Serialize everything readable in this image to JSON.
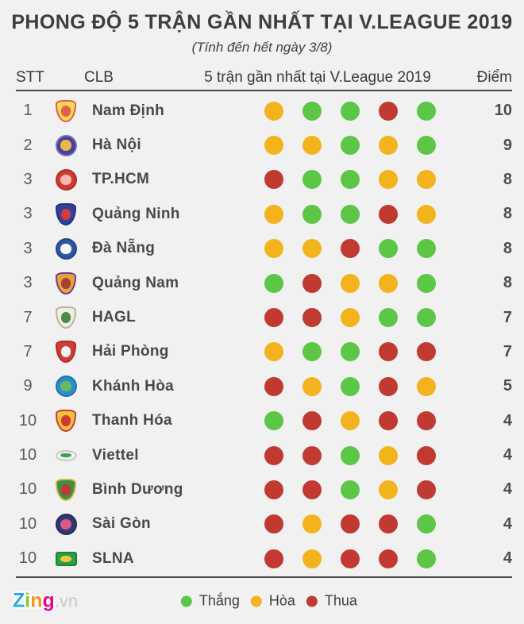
{
  "title": "PHONG ĐỘ 5 TRẬN GẦN NHẤT TẠI V.LEAGUE 2019",
  "subtitle": "(Tính đến hết ngày 3/8)",
  "columns": {
    "stt": "STT",
    "clb": "CLB",
    "form": "5 trận gần nhất tại V.League 2019",
    "points": "Điểm"
  },
  "result_colors": {
    "W": "#5CC646",
    "D": "#F3B31C",
    "L": "#C03A31"
  },
  "result_names": {
    "W": "win",
    "D": "draw",
    "L": "loss"
  },
  "legend": [
    {
      "result": "W",
      "label": "Thắng"
    },
    {
      "result": "D",
      "label": "Hòa"
    },
    {
      "result": "L",
      "label": "Thua"
    }
  ],
  "rows": [
    {
      "stt": "1",
      "team": "Nam Định",
      "form": [
        "D",
        "W",
        "W",
        "L",
        "W"
      ],
      "points": "10",
      "logo": {
        "shape": "shield",
        "primary": "#F8D952",
        "border": "#E25C50",
        "secondary": "#E25C50"
      }
    },
    {
      "stt": "2",
      "team": "Hà Nội",
      "form": [
        "D",
        "D",
        "W",
        "D",
        "W"
      ],
      "points": "9",
      "logo": {
        "shape": "circle",
        "primary": "#4A3F96",
        "border": "#7A6FC0",
        "secondary": "#E8B84B"
      }
    },
    {
      "stt": "3",
      "team": "TP.HCM",
      "form": [
        "L",
        "W",
        "W",
        "D",
        "D"
      ],
      "points": "8",
      "logo": {
        "shape": "circle",
        "primary": "#CE3B33",
        "border": "#B22D27",
        "secondary": "#F2B8B2"
      }
    },
    {
      "stt": "3",
      "team": "Quảng Ninh",
      "form": [
        "D",
        "W",
        "W",
        "L",
        "D"
      ],
      "points": "8",
      "logo": {
        "shape": "shield",
        "primary": "#33409B",
        "border": "#27307A",
        "secondary": "#D33C3C"
      }
    },
    {
      "stt": "3",
      "team": "Đà Nẵng",
      "form": [
        "D",
        "D",
        "L",
        "W",
        "W"
      ],
      "points": "8",
      "logo": {
        "shape": "circle",
        "primary": "#2F56A5",
        "border": "#244684",
        "secondary": "#FFFFFF"
      }
    },
    {
      "stt": "3",
      "team": "Quảng Nam",
      "form": [
        "W",
        "L",
        "D",
        "D",
        "W"
      ],
      "points": "8",
      "logo": {
        "shape": "shield",
        "primary": "#E8A33D",
        "border": "#6B3F8F",
        "secondary": "#A2452F"
      }
    },
    {
      "stt": "7",
      "team": "HAGL",
      "form": [
        "L",
        "L",
        "D",
        "W",
        "W"
      ],
      "points": "7",
      "logo": {
        "shape": "shield",
        "primary": "#F0EEE3",
        "border": "#B7B3A4",
        "secondary": "#4C8B43"
      }
    },
    {
      "stt": "7",
      "team": "Hải Phòng",
      "form": [
        "D",
        "W",
        "W",
        "L",
        "L"
      ],
      "points": "7",
      "logo": {
        "shape": "shield",
        "primary": "#D23A36",
        "border": "#B22D27",
        "secondary": "#F5F5F5"
      }
    },
    {
      "stt": "9",
      "team": "Khánh Hòa",
      "form": [
        "L",
        "D",
        "W",
        "L",
        "D"
      ],
      "points": "5",
      "logo": {
        "shape": "circle",
        "primary": "#2B8ECA",
        "border": "#1F74A8",
        "secondary": "#69B95E"
      }
    },
    {
      "stt": "10",
      "team": "Thanh Hóa",
      "form": [
        "W",
        "L",
        "D",
        "L",
        "L"
      ],
      "points": "4",
      "logo": {
        "shape": "shield",
        "primary": "#F0C23F",
        "border": "#D0392F",
        "secondary": "#D0392F"
      }
    },
    {
      "stt": "10",
      "team": "Viettel",
      "form": [
        "L",
        "L",
        "W",
        "D",
        "L"
      ],
      "points": "4",
      "logo": {
        "shape": "oval",
        "primary": "#F5F5F0",
        "border": "#C8C8C2",
        "secondary": "#3D9C5B"
      }
    },
    {
      "stt": "10",
      "team": "Bình Dương",
      "form": [
        "L",
        "L",
        "W",
        "D",
        "L"
      ],
      "points": "4",
      "logo": {
        "shape": "shield",
        "primary": "#3E8F46",
        "border": "#D5B63F",
        "secondary": "#C23A35"
      }
    },
    {
      "stt": "10",
      "team": "Sài Gòn",
      "form": [
        "L",
        "D",
        "L",
        "L",
        "W"
      ],
      "points": "4",
      "logo": {
        "shape": "circle",
        "primary": "#2E3A70",
        "border": "#222C58",
        "secondary": "#D85A8A"
      }
    },
    {
      "stt": "10",
      "team": "SLNA",
      "form": [
        "L",
        "D",
        "L",
        "L",
        "W"
      ],
      "points": "4",
      "logo": {
        "shape": "rect",
        "primary": "#2F9E44",
        "border": "#1F8232",
        "secondary": "#F0C93F"
      }
    }
  ],
  "footer_logo": {
    "letters": [
      {
        "ch": "Z",
        "color": "#29ABE2"
      },
      {
        "ch": "i",
        "color": "#8CC63F"
      },
      {
        "ch": "n",
        "color": "#F7941D"
      },
      {
        "ch": "g",
        "color": "#EC008C"
      }
    ],
    "suffix": ".vn"
  },
  "chart_data": {
    "type": "table",
    "title": "PHONG ĐỘ 5 TRẬN GẦN NHẤT TẠI V.LEAGUE 2019",
    "subtitle": "(Tính đến hết ngày 3/8)",
    "columns": [
      "STT",
      "CLB",
      "5 trận gần nhất tại V.League 2019",
      "Điểm"
    ],
    "legend": {
      "W": "Thắng",
      "D": "Hòa",
      "L": "Thua"
    },
    "rows": [
      {
        "stt": 1,
        "club": "Nam Định",
        "form": [
          "D",
          "W",
          "W",
          "L",
          "W"
        ],
        "points": 10
      },
      {
        "stt": 2,
        "club": "Hà Nội",
        "form": [
          "D",
          "D",
          "W",
          "D",
          "W"
        ],
        "points": 9
      },
      {
        "stt": 3,
        "club": "TP.HCM",
        "form": [
          "L",
          "W",
          "W",
          "D",
          "D"
        ],
        "points": 8
      },
      {
        "stt": 3,
        "club": "Quảng Ninh",
        "form": [
          "D",
          "W",
          "W",
          "L",
          "D"
        ],
        "points": 8
      },
      {
        "stt": 3,
        "club": "Đà Nẵng",
        "form": [
          "D",
          "D",
          "L",
          "W",
          "W"
        ],
        "points": 8
      },
      {
        "stt": 3,
        "club": "Quảng Nam",
        "form": [
          "W",
          "L",
          "D",
          "D",
          "W"
        ],
        "points": 8
      },
      {
        "stt": 7,
        "club": "HAGL",
        "form": [
          "L",
          "L",
          "D",
          "W",
          "W"
        ],
        "points": 7
      },
      {
        "stt": 7,
        "club": "Hải Phòng",
        "form": [
          "D",
          "W",
          "W",
          "L",
          "L"
        ],
        "points": 7
      },
      {
        "stt": 9,
        "club": "Khánh Hòa",
        "form": [
          "L",
          "D",
          "W",
          "L",
          "D"
        ],
        "points": 5
      },
      {
        "stt": 10,
        "club": "Thanh Hóa",
        "form": [
          "W",
          "L",
          "D",
          "L",
          "L"
        ],
        "points": 4
      },
      {
        "stt": 10,
        "club": "Viettel",
        "form": [
          "L",
          "L",
          "W",
          "D",
          "L"
        ],
        "points": 4
      },
      {
        "stt": 10,
        "club": "Bình Dương",
        "form": [
          "L",
          "L",
          "W",
          "D",
          "L"
        ],
        "points": 4
      },
      {
        "stt": 10,
        "club": "Sài Gòn",
        "form": [
          "L",
          "D",
          "L",
          "L",
          "W"
        ],
        "points": 4
      },
      {
        "stt": 10,
        "club": "SLNA",
        "form": [
          "L",
          "D",
          "L",
          "L",
          "W"
        ],
        "points": 4
      }
    ]
  }
}
